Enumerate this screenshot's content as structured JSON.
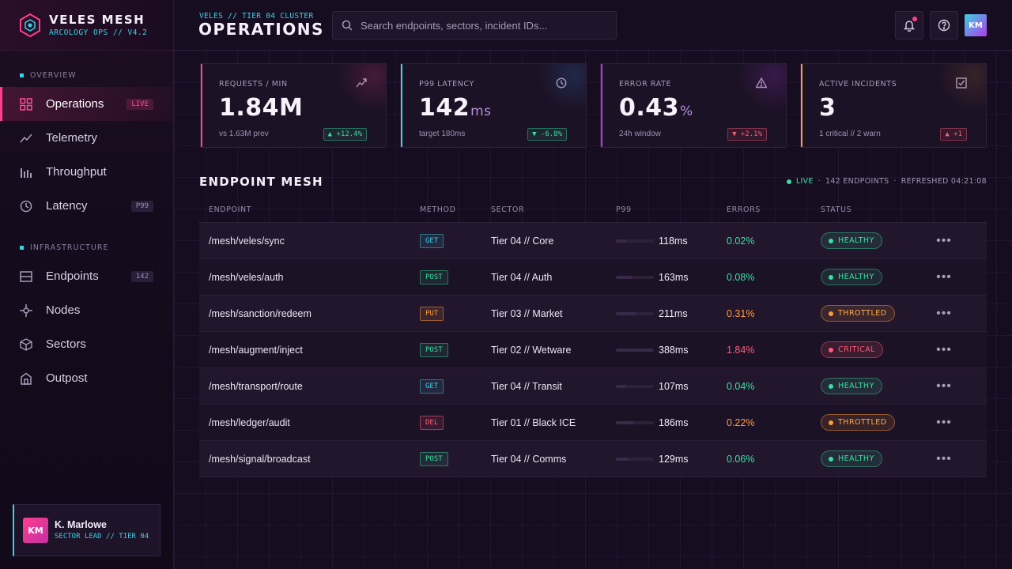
{
  "brand": {
    "title": "VELES MESH",
    "subtitle": "ARCOLOGY OPS // V4.2"
  },
  "sidebar": {
    "sections": [
      {
        "label": "OVERVIEW"
      },
      {
        "label": "INFRASTRUCTURE"
      }
    ],
    "items": [
      {
        "label": "Operations",
        "icon": "grid-icon",
        "badge": "LIVE",
        "active": true
      },
      {
        "label": "Telemetry",
        "icon": "trend-line-icon",
        "badge": ""
      },
      {
        "label": "Throughput",
        "icon": "bars-icon",
        "badge": ""
      },
      {
        "label": "Latency",
        "icon": "clock-icon",
        "badge": "P99"
      },
      {
        "label": "Endpoints",
        "icon": "server-icon",
        "badge": "142"
      },
      {
        "label": "Nodes",
        "icon": "node-icon",
        "badge": ""
      },
      {
        "label": "Sectors",
        "icon": "cube-icon",
        "badge": ""
      },
      {
        "label": "Outpost",
        "icon": "home-icon",
        "badge": ""
      }
    ],
    "user": {
      "initials": "KM",
      "name": "K. Marlowe",
      "role": "SECTOR LEAD // TIER 04"
    }
  },
  "header": {
    "subtitle": "VELES // TIER 04 CLUSTER",
    "title": "OPERATIONS",
    "search_placeholder": "Search endpoints, sectors, incident IDs...",
    "avatar_initials": "KM"
  },
  "kpis": [
    {
      "label": "REQUESTS / MIN",
      "value": "1.84M",
      "unit": "",
      "foot": "vs 1.63M prev",
      "delta": "▲ +12.4%",
      "delta_dir": "up",
      "icon": "trend-icon"
    },
    {
      "label": "P99 LATENCY",
      "value": "142",
      "unit": "ms",
      "foot": "target 180ms",
      "delta": "▼ -6.8%",
      "delta_dir": "up",
      "icon": "clock-icon"
    },
    {
      "label": "ERROR RATE",
      "value": "0.43",
      "unit": "%",
      "foot": "24h window",
      "delta": "▼ +2.1%",
      "delta_dir": "down",
      "icon": "warning-icon"
    },
    {
      "label": "ACTIVE INCIDENTS",
      "value": "3",
      "unit": "",
      "foot": "1 critical // 2 warn",
      "delta": "▲ +1",
      "delta_dir": "down",
      "icon": "check-square-icon"
    }
  ],
  "mesh": {
    "title": "ENDPOINT MESH",
    "live": "LIVE",
    "count": "142 ENDPOINTS",
    "refreshed": "REFRESHED 04:21:08",
    "columns": [
      "ENDPOINT",
      "METHOD",
      "SECTOR",
      "P99",
      "ERRORS",
      "STATUS"
    ],
    "rows": [
      {
        "endpoint": "/mesh/veles/sync",
        "method": "GET",
        "sector": "Tier 04 // Core",
        "p99": "118ms",
        "p99_ms": 118,
        "errors": "0.02%",
        "status": "HEALTHY"
      },
      {
        "endpoint": "/mesh/veles/auth",
        "method": "POST",
        "sector": "Tier 04 // Auth",
        "p99": "163ms",
        "p99_ms": 163,
        "errors": "0.08%",
        "status": "HEALTHY"
      },
      {
        "endpoint": "/mesh/sanction/redeem",
        "method": "PUT",
        "sector": "Tier 03 // Market",
        "p99": "211ms",
        "p99_ms": 211,
        "errors": "0.31%",
        "status": "THROTTLED"
      },
      {
        "endpoint": "/mesh/augment/inject",
        "method": "POST",
        "sector": "Tier 02 // Wetware",
        "p99": "388ms",
        "p99_ms": 388,
        "errors": "1.84%",
        "status": "CRITICAL"
      },
      {
        "endpoint": "/mesh/transport/route",
        "method": "GET",
        "sector": "Tier 04 // Transit",
        "p99": "107ms",
        "p99_ms": 107,
        "errors": "0.04%",
        "status": "HEALTHY"
      },
      {
        "endpoint": "/mesh/ledger/audit",
        "method": "DEL",
        "sector": "Tier 01 // Black ICE",
        "p99": "186ms",
        "p99_ms": 186,
        "errors": "0.22%",
        "status": "THROTTLED"
      },
      {
        "endpoint": "/mesh/signal/broadcast",
        "method": "POST",
        "sector": "Tier 04 // Comms",
        "p99": "129ms",
        "p99_ms": 129,
        "errors": "0.06%",
        "status": "HEALTHY"
      }
    ]
  },
  "colors": {
    "accent_pink": "#ff3f8c",
    "accent_cyan": "#3ad2e6",
    "accent_purple": "#b43ae6",
    "accent_orange": "#ff9b3a",
    "healthy": "#37e0a0",
    "critical": "#ff5a78"
  }
}
